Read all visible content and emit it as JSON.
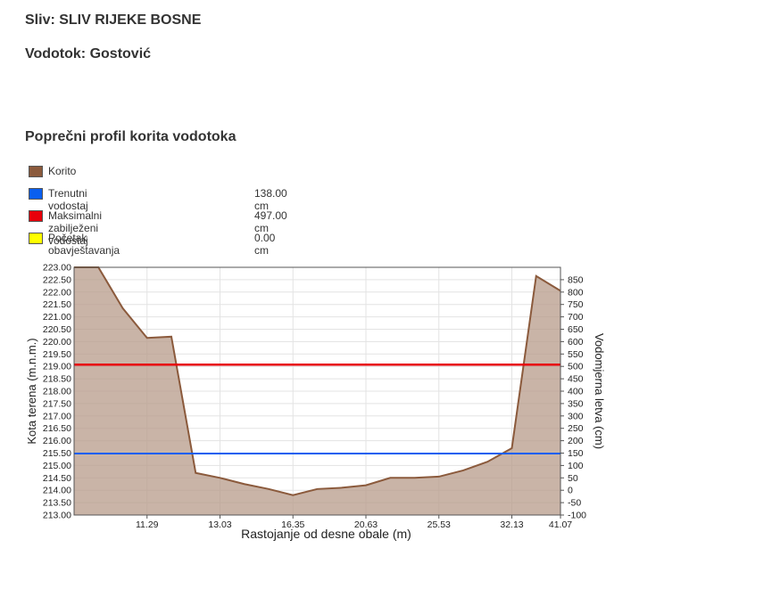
{
  "header": {
    "sliv": "Sliv: SLIV RIJEKE BOSNE",
    "vodotok": "Vodotok: Gostović",
    "section_title": "Poprečni profil korita vodotoka"
  },
  "legend": [
    {
      "label": "Korito",
      "value": "",
      "color": "#8B5A3C"
    },
    {
      "label": "Trenutni vodostaj",
      "value": "138.00 cm",
      "color": "#0A5FF0"
    },
    {
      "label": "Maksimalni zabilježeni vodostaj",
      "value": "497.00 cm",
      "color": "#E8000B"
    },
    {
      "label": "Početak obavještavanja",
      "value": "0.00 cm",
      "color": "#FFFF00"
    }
  ],
  "chart_data": {
    "type": "area",
    "xlabel": "Rastojanje od desne obale (m)",
    "ylabel": "Kota terena (m.n.m.)",
    "ylabel_right": "Vodomjerna letva (cm)",
    "ylim": [
      213.0,
      223.0
    ],
    "y_ticks": [
      "223.00",
      "222.50",
      "222.00",
      "221.50",
      "221.00",
      "220.50",
      "220.00",
      "219.50",
      "219.00",
      "218.50",
      "218.00",
      "217.50",
      "217.00",
      "216.50",
      "216.00",
      "215.50",
      "215.00",
      "214.50",
      "214.00",
      "213.50",
      "213.00"
    ],
    "y2lim": [
      -100,
      900
    ],
    "y2_ticks": [
      "850",
      "800",
      "750",
      "700",
      "650",
      "600",
      "550",
      "500",
      "450",
      "400",
      "350",
      "300",
      "250",
      "200",
      "150",
      "100",
      "50",
      "0",
      "-50",
      "-100"
    ],
    "x_tick_labels": [
      "11.29",
      "13.03",
      "16.35",
      "20.63",
      "25.53",
      "32.13",
      "41.07"
    ],
    "korito": {
      "x": [
        0,
        1,
        2,
        3,
        4,
        5,
        6,
        7,
        8,
        9,
        10,
        11,
        12,
        13,
        14,
        15,
        16,
        17,
        18,
        19,
        20
      ],
      "y": [
        223.0,
        223.0,
        221.35,
        220.15,
        220.2,
        214.7,
        214.5,
        214.25,
        214.05,
        213.8,
        214.05,
        214.1,
        214.2,
        214.5,
        214.5,
        214.55,
        214.8,
        215.15,
        215.7,
        222.65,
        222.05
      ]
    },
    "water_levels": {
      "trenutni_vodostaj": 215.48,
      "maksimalni_vodostaj": 219.07
    },
    "grid": true
  }
}
